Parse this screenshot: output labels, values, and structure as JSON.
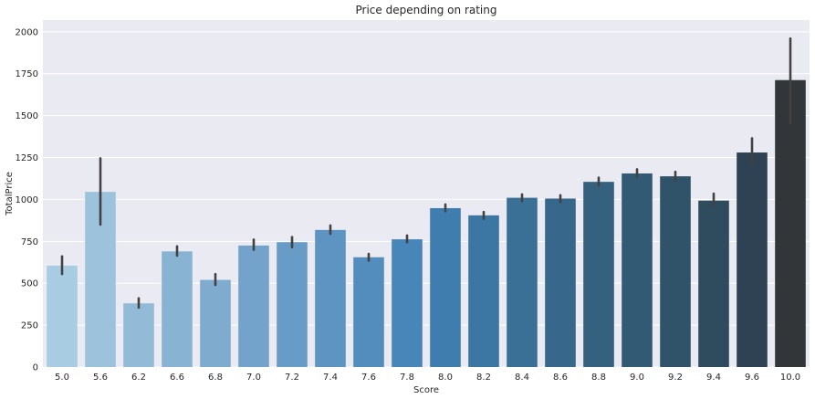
{
  "chart_data": {
    "type": "bar",
    "title": "Price depending on rating",
    "xlabel": "Score",
    "ylabel": "TotalPrice",
    "categories": [
      "5.0",
      "5.6",
      "6.2",
      "6.6",
      "6.8",
      "7.0",
      "7.2",
      "7.4",
      "7.6",
      "7.8",
      "8.0",
      "8.2",
      "8.4",
      "8.6",
      "8.8",
      "9.0",
      "9.2",
      "9.4",
      "9.6",
      "10.0"
    ],
    "values": [
      605,
      1045,
      380,
      690,
      520,
      725,
      745,
      818,
      655,
      762,
      948,
      905,
      1010,
      1005,
      1105,
      1155,
      1138,
      993,
      1280,
      1712
    ],
    "error_low": [
      555,
      850,
      355,
      665,
      490,
      700,
      715,
      795,
      635,
      745,
      930,
      885,
      990,
      985,
      1085,
      1135,
      1115,
      965,
      1215,
      1455
    ],
    "error_high": [
      660,
      1245,
      410,
      720,
      555,
      760,
      775,
      845,
      675,
      785,
      970,
      925,
      1030,
      1025,
      1130,
      1180,
      1165,
      1035,
      1365,
      1960
    ],
    "yticks": [
      0,
      250,
      500,
      750,
      1000,
      1250,
      1500,
      1750,
      2000
    ],
    "ylim": [
      0,
      2070
    ],
    "grid": true,
    "colors": [
      "#a8cde3",
      "#9dc3dc",
      "#93bbd7",
      "#88b3d2",
      "#7eabce",
      "#73a3ca",
      "#689cc6",
      "#5e94c1",
      "#538dbd",
      "#4885b8",
      "#3f7dae",
      "#3c76a2",
      "#3a6f96",
      "#37688b",
      "#35617f",
      "#325a74",
      "#305369",
      "#2e4c5e",
      "#2e4253",
      "#323639"
    ],
    "bar_color_note": "sequential blue-to-charcoal palette",
    "error_bar_color": "#424242",
    "background": "#eaeaf2"
  }
}
